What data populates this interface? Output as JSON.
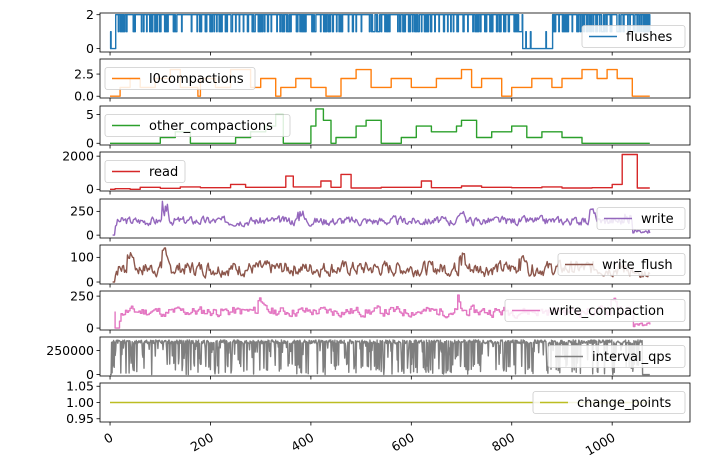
{
  "chart_data": {
    "type": "line",
    "layout": "stacked-subplots-shared-x",
    "x_ticks": [
      "0",
      "200",
      "400",
      "600",
      "800",
      "1000"
    ],
    "xlim": [
      -20,
      1155
    ],
    "grid": false,
    "panels": [
      {
        "name": "flushes",
        "color": "#1f77b4",
        "ylim": [
          -0.2,
          2.1
        ],
        "y_ticks": [
          "0",
          "2"
        ],
        "legend": "right",
        "style": "square",
        "n_points": 1050,
        "segments": [
          [
            0,
            0
          ],
          [
            10,
            0
          ],
          [
            11,
            1
          ],
          [
            30,
            1
          ],
          [
            31,
            2
          ],
          [
            100,
            2
          ],
          [
            101,
            1
          ],
          [
            105,
            1
          ],
          [
            106,
            2
          ],
          [
            200,
            2
          ],
          [
            201,
            1
          ],
          [
            205,
            1
          ],
          [
            206,
            2
          ],
          [
            400,
            2
          ],
          [
            401,
            1
          ],
          [
            410,
            1
          ],
          [
            411,
            2
          ],
          [
            600,
            2
          ],
          [
            601,
            1
          ],
          [
            610,
            1
          ],
          [
            611,
            2
          ],
          [
            800,
            2
          ],
          [
            801,
            1
          ],
          [
            820,
            1
          ],
          [
            821,
            0
          ],
          [
            880,
            0
          ],
          [
            881,
            2
          ],
          [
            950,
            2
          ],
          [
            951,
            1
          ],
          [
            960,
            1
          ],
          [
            961,
            2
          ],
          [
            1050,
            2
          ]
        ]
      },
      {
        "name": "l0compactions",
        "color": "#ff7f0e",
        "ylim": [
          -0.2,
          4.2
        ],
        "y_ticks": [
          "0.0",
          "2.5"
        ],
        "legend": "left",
        "style": "step",
        "points": [
          [
            0,
            0
          ],
          [
            20,
            0
          ],
          [
            20,
            1
          ],
          [
            40,
            1
          ],
          [
            40,
            2
          ],
          [
            60,
            2
          ],
          [
            60,
            1
          ],
          [
            90,
            1
          ],
          [
            90,
            2
          ],
          [
            120,
            2
          ],
          [
            120,
            3
          ],
          [
            140,
            3
          ],
          [
            140,
            1
          ],
          [
            175,
            1
          ],
          [
            175,
            0
          ],
          [
            180,
            0
          ],
          [
            180,
            2
          ],
          [
            210,
            2
          ],
          [
            210,
            1
          ],
          [
            240,
            1
          ],
          [
            240,
            3
          ],
          [
            280,
            3
          ],
          [
            280,
            1
          ],
          [
            300,
            1
          ],
          [
            300,
            2
          ],
          [
            330,
            2
          ],
          [
            330,
            0
          ],
          [
            340,
            0
          ],
          [
            340,
            1
          ],
          [
            370,
            1
          ],
          [
            370,
            2
          ],
          [
            400,
            2
          ],
          [
            400,
            1
          ],
          [
            430,
            1
          ],
          [
            430,
            0
          ],
          [
            460,
            0
          ],
          [
            460,
            2
          ],
          [
            490,
            2
          ],
          [
            490,
            3
          ],
          [
            520,
            3
          ],
          [
            520,
            1
          ],
          [
            560,
            1
          ],
          [
            560,
            2
          ],
          [
            600,
            2
          ],
          [
            600,
            1
          ],
          [
            650,
            1
          ],
          [
            650,
            2
          ],
          [
            700,
            2
          ],
          [
            700,
            3
          ],
          [
            720,
            3
          ],
          [
            720,
            1
          ],
          [
            740,
            1
          ],
          [
            740,
            2
          ],
          [
            780,
            2
          ],
          [
            780,
            0
          ],
          [
            800,
            0
          ],
          [
            800,
            1
          ],
          [
            840,
            1
          ],
          [
            840,
            2
          ],
          [
            880,
            2
          ],
          [
            880,
            1
          ],
          [
            900,
            1
          ],
          [
            900,
            2
          ],
          [
            940,
            2
          ],
          [
            940,
            3
          ],
          [
            970,
            3
          ],
          [
            970,
            2
          ],
          [
            990,
            2
          ],
          [
            990,
            3
          ],
          [
            1010,
            3
          ],
          [
            1010,
            2
          ],
          [
            1040,
            2
          ],
          [
            1040,
            0
          ],
          [
            1075,
            0
          ]
        ]
      },
      {
        "name": "other_compactions",
        "color": "#2ca02c",
        "ylim": [
          -0.3,
          6.5
        ],
        "y_ticks": [
          "0",
          "5"
        ],
        "legend": "left",
        "style": "step",
        "points": [
          [
            0,
            0
          ],
          [
            100,
            0
          ],
          [
            100,
            1
          ],
          [
            130,
            1
          ],
          [
            130,
            2
          ],
          [
            160,
            2
          ],
          [
            160,
            0
          ],
          [
            250,
            0
          ],
          [
            250,
            1
          ],
          [
            280,
            1
          ],
          [
            280,
            2
          ],
          [
            310,
            2
          ],
          [
            310,
            3
          ],
          [
            330,
            3
          ],
          [
            330,
            5
          ],
          [
            345,
            5
          ],
          [
            345,
            0
          ],
          [
            400,
            0
          ],
          [
            400,
            3
          ],
          [
            410,
            3
          ],
          [
            410,
            6
          ],
          [
            425,
            6
          ],
          [
            425,
            4
          ],
          [
            440,
            4
          ],
          [
            440,
            0
          ],
          [
            450,
            0
          ],
          [
            450,
            1
          ],
          [
            490,
            1
          ],
          [
            490,
            3
          ],
          [
            510,
            3
          ],
          [
            510,
            4
          ],
          [
            540,
            4
          ],
          [
            540,
            0
          ],
          [
            580,
            0
          ],
          [
            580,
            1
          ],
          [
            610,
            1
          ],
          [
            610,
            3
          ],
          [
            640,
            3
          ],
          [
            640,
            2
          ],
          [
            690,
            2
          ],
          [
            690,
            3
          ],
          [
            700,
            3
          ],
          [
            700,
            4
          ],
          [
            730,
            4
          ],
          [
            730,
            1
          ],
          [
            760,
            1
          ],
          [
            760,
            2
          ],
          [
            800,
            2
          ],
          [
            800,
            3
          ],
          [
            830,
            3
          ],
          [
            830,
            1
          ],
          [
            860,
            1
          ],
          [
            860,
            2
          ],
          [
            900,
            2
          ],
          [
            900,
            1
          ],
          [
            940,
            1
          ],
          [
            940,
            0
          ],
          [
            1075,
            0
          ]
        ]
      },
      {
        "name": "read",
        "color": "#d62728",
        "ylim": [
          -100,
          2250
        ],
        "y_ticks": [
          "0",
          "2000"
        ],
        "legend": "left",
        "style": "step",
        "points": [
          [
            0,
            0
          ],
          [
            10,
            0
          ],
          [
            10,
            40
          ],
          [
            40,
            40
          ],
          [
            40,
            0
          ],
          [
            60,
            0
          ],
          [
            60,
            120
          ],
          [
            100,
            120
          ],
          [
            100,
            60
          ],
          [
            140,
            60
          ],
          [
            140,
            150
          ],
          [
            180,
            150
          ],
          [
            180,
            100
          ],
          [
            240,
            100
          ],
          [
            240,
            300
          ],
          [
            270,
            300
          ],
          [
            270,
            120
          ],
          [
            350,
            120
          ],
          [
            350,
            800
          ],
          [
            365,
            800
          ],
          [
            365,
            150
          ],
          [
            420,
            150
          ],
          [
            420,
            500
          ],
          [
            440,
            500
          ],
          [
            440,
            120
          ],
          [
            460,
            120
          ],
          [
            460,
            900
          ],
          [
            480,
            900
          ],
          [
            480,
            80
          ],
          [
            540,
            80
          ],
          [
            540,
            120
          ],
          [
            620,
            120
          ],
          [
            620,
            500
          ],
          [
            640,
            500
          ],
          [
            640,
            100
          ],
          [
            700,
            100
          ],
          [
            700,
            200
          ],
          [
            740,
            200
          ],
          [
            740,
            120
          ],
          [
            800,
            120
          ],
          [
            800,
            100
          ],
          [
            860,
            100
          ],
          [
            860,
            150
          ],
          [
            900,
            150
          ],
          [
            900,
            80
          ],
          [
            960,
            80
          ],
          [
            960,
            100
          ],
          [
            1000,
            100
          ],
          [
            1000,
            300
          ],
          [
            1020,
            300
          ],
          [
            1020,
            2100
          ],
          [
            1050,
            2100
          ],
          [
            1050,
            80
          ],
          [
            1075,
            80
          ]
        ]
      },
      {
        "name": "write",
        "color": "#9467bd",
        "ylim": [
          -30,
          380
        ],
        "y_ticks": [
          "0",
          "250"
        ],
        "legend": "right",
        "style": "noisy",
        "n_points": 540,
        "x_start": 5,
        "x_end": 1075,
        "base": 150,
        "amp": 70,
        "seed": 3,
        "peaks": [
          [
            110,
            360
          ],
          [
            380,
            260
          ],
          [
            700,
            250
          ],
          [
            960,
            280
          ],
          [
            1030,
            230
          ]
        ],
        "tail": [
          1040,
          20
        ]
      },
      {
        "name": "write_flush",
        "color": "#8c564b",
        "ylim": [
          -8,
          150
        ],
        "y_ticks": [
          "0",
          "100"
        ],
        "legend": "right",
        "style": "noisy",
        "n_points": 540,
        "x_start": 5,
        "x_end": 1075,
        "base": 55,
        "amp": 45,
        "seed": 7,
        "peaks": [
          [
            110,
            145
          ],
          [
            40,
            120
          ],
          [
            700,
            120
          ],
          [
            820,
            110
          ]
        ],
        "tail": [
          1040,
          20
        ]
      },
      {
        "name": "write_compaction",
        "color": "#e377c2",
        "ylim": [
          -15,
          290
        ],
        "y_ticks": [
          "0",
          "250"
        ],
        "legend": "right",
        "style": "noisy-step",
        "n_points": 360,
        "x_start": 10,
        "x_end": 1075,
        "base": 130,
        "amp": 60,
        "seed": 11,
        "peaks": [
          [
            110,
            260
          ],
          [
            300,
            250
          ],
          [
            690,
            260
          ],
          [
            1000,
            240
          ]
        ],
        "tail": [
          1040,
          10
        ]
      },
      {
        "name": "interval_qps",
        "color": "#7f7f7f",
        "ylim": [
          -15000,
          390000
        ],
        "y_ticks": [
          "0",
          "250000"
        ],
        "legend": "right",
        "style": "dense",
        "n_points": 1050,
        "x_start": 0,
        "x_end": 1075,
        "base": 340000,
        "low": 0,
        "seed": 5
      },
      {
        "name": "change_points",
        "color": "#bcbd22",
        "ylim": [
          0.94,
          1.06
        ],
        "y_ticks": [
          "0.95",
          "1.00",
          "1.05"
        ],
        "legend": "right",
        "style": "step",
        "points": [
          [
            0,
            1.0
          ],
          [
            1075,
            1.0
          ]
        ]
      }
    ]
  }
}
